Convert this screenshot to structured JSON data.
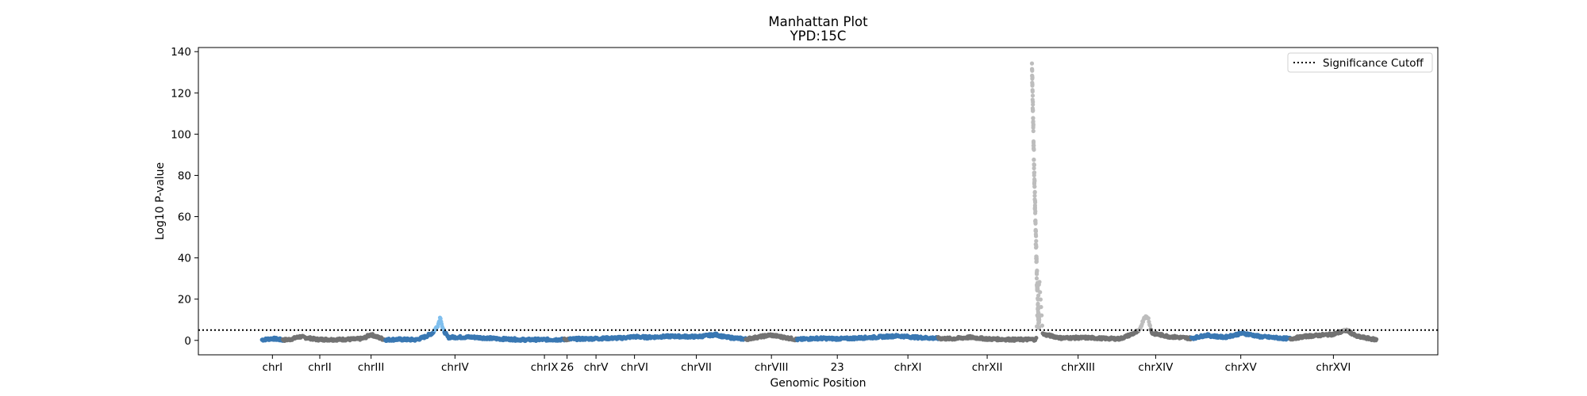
{
  "chart_data": {
    "type": "scatter",
    "title": "Manhattan Plot",
    "subtitle": "YPD:15C",
    "xlabel": "Genomic Position",
    "ylabel": "Log10 P-value",
    "ylim": [
      -7,
      142
    ],
    "yticks": [
      0,
      20,
      40,
      60,
      80,
      100,
      120,
      140
    ],
    "grid": false,
    "legend": {
      "placement": "top-right",
      "entries": [
        {
          "label": "Significance Cutoff",
          "style": "dotted-line",
          "color": "#000000"
        }
      ]
    },
    "significance_cutoff": 5,
    "colors": {
      "blue": "#3a78b3",
      "gray": "#737373",
      "sig_blue": "#7fbfee",
      "sig_gray": "#bdbdbd"
    },
    "chromosomes": [
      {
        "label": "chrI",
        "start": 1,
        "end": 230,
        "color": "blue"
      },
      {
        "label": "chrII",
        "start": 231,
        "end": 1043,
        "color": "gray"
      },
      {
        "label": "chrIII",
        "start": 1044,
        "end": 1360,
        "color": "gray"
      },
      {
        "label": "chrIV",
        "start": 1361,
        "end": 2891,
        "color": "blue"
      },
      {
        "label": "chrIX",
        "start": 2892,
        "end": 3330,
        "color": "blue"
      },
      {
        "label": "26",
        "start": 3331,
        "end": 3390,
        "color": "gray"
      },
      {
        "label": "chrV",
        "start": 3391,
        "end": 3967,
        "color": "blue"
      },
      {
        "label": "chrVI",
        "start": 3968,
        "end": 4238,
        "color": "blue"
      },
      {
        "label": "chrVII",
        "start": 4239,
        "end": 5329,
        "color": "blue"
      },
      {
        "label": "chrVIII",
        "start": 5330,
        "end": 5892,
        "color": "gray"
      },
      {
        "label": "23",
        "start": 5893,
        "end": 6780,
        "color": "blue"
      },
      {
        "label": "chrXI",
        "start": 6781,
        "end": 7447,
        "color": "blue"
      },
      {
        "label": "chrXII",
        "start": 7448,
        "end": 8526,
        "color": "gray"
      },
      {
        "label": "chrXIII",
        "start": 8527,
        "end": 9450,
        "color": "gray"
      },
      {
        "label": "chrXIV",
        "start": 9451,
        "end": 10234,
        "color": "gray"
      },
      {
        "label": "chrXV",
        "start": 10235,
        "end": 11325,
        "color": "blue"
      },
      {
        "label": "chrXVI",
        "start": 11326,
        "end": 12274,
        "color": "gray"
      }
    ],
    "xlim": [
      -700,
      12950
    ],
    "baseline_profile": [
      [
        1,
        0.3
      ],
      [
        120,
        0.9
      ],
      [
        230,
        0.2
      ],
      [
        300,
        0.4
      ],
      [
        420,
        1.8
      ],
      [
        600,
        0.5
      ],
      [
        800,
        0.4
      ],
      [
        1043,
        0.6
      ],
      [
        1120,
        1.0
      ],
      [
        1200,
        2.9
      ],
      [
        1270,
        1.6
      ],
      [
        1360,
        0.3
      ],
      [
        1500,
        0.5
      ],
      [
        1700,
        0.3
      ],
      [
        1800,
        1.8
      ],
      [
        1880,
        3.6
      ],
      [
        1940,
        7.5
      ],
      [
        1965,
        11.5
      ],
      [
        1990,
        5.5
      ],
      [
        2050,
        1.5
      ],
      [
        2300,
        1.6
      ],
      [
        2600,
        0.8
      ],
      [
        2891,
        0.3
      ],
      [
        3100,
        0.4
      ],
      [
        3330,
        0.4
      ],
      [
        3360,
        0.6
      ],
      [
        3600,
        0.8
      ],
      [
        3967,
        1.2
      ],
      [
        4100,
        1.8
      ],
      [
        4238,
        1.5
      ],
      [
        4500,
        2.0
      ],
      [
        4800,
        1.8
      ],
      [
        5000,
        2.8
      ],
      [
        5100,
        1.6
      ],
      [
        5329,
        0.6
      ],
      [
        5600,
        2.6
      ],
      [
        5892,
        0.4
      ],
      [
        6100,
        1.0
      ],
      [
        6400,
        0.8
      ],
      [
        6780,
        1.6
      ],
      [
        7000,
        2.2
      ],
      [
        7200,
        1.5
      ],
      [
        7447,
        1.0
      ],
      [
        7600,
        0.8
      ],
      [
        7800,
        1.5
      ],
      [
        8000,
        0.7
      ],
      [
        8300,
        0.4
      ],
      [
        8526,
        0.5
      ],
      [
        8560,
        30
      ],
      [
        8600,
        3.0
      ],
      [
        8800,
        1.2
      ],
      [
        9100,
        1.3
      ],
      [
        9300,
        0.9
      ],
      [
        9450,
        0.8
      ],
      [
        9550,
        2.5
      ],
      [
        9660,
        4.5
      ],
      [
        9720,
        11.5
      ],
      [
        9760,
        11.0
      ],
      [
        9800,
        3.5
      ],
      [
        10000,
        1.8
      ],
      [
        10234,
        1.0
      ],
      [
        10400,
        2.5
      ],
      [
        10600,
        1.5
      ],
      [
        10800,
        3.5
      ],
      [
        11000,
        1.8
      ],
      [
        11325,
        0.8
      ],
      [
        11500,
        2.0
      ],
      [
        11800,
        3.0
      ],
      [
        11950,
        5.0
      ],
      [
        12050,
        2.0
      ],
      [
        12274,
        0.3
      ]
    ],
    "peak_xii": {
      "x_range": [
        8480,
        8560
      ],
      "y_max": 135,
      "y_min": 7
    }
  }
}
